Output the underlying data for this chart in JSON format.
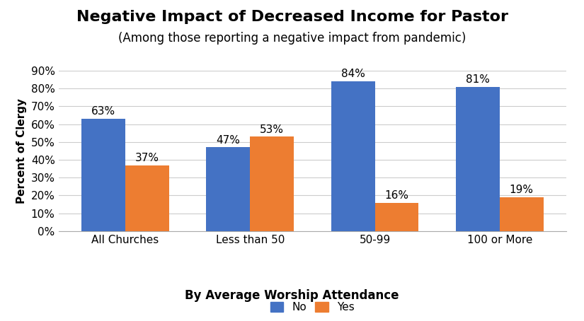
{
  "title": "Negative Impact of Decreased Income for Pastor",
  "subtitle": "(Among those reporting a negative impact from pandemic)",
  "xlabel": "By Average Worship Attendance",
  "ylabel": "Percent of Clergy",
  "categories": [
    "All Churches",
    "Less than 50",
    "50-99",
    "100 or More"
  ],
  "no_values": [
    63,
    47,
    84,
    81
  ],
  "yes_values": [
    37,
    53,
    16,
    19
  ],
  "no_color": "#4472C4",
  "yes_color": "#ED7D31",
  "ylim": [
    0,
    90
  ],
  "yticks": [
    0,
    10,
    20,
    30,
    40,
    50,
    60,
    70,
    80,
    90
  ],
  "ytick_labels": [
    "0%",
    "10%",
    "20%",
    "30%",
    "40%",
    "50%",
    "60%",
    "70%",
    "80%",
    "90%"
  ],
  "bar_width": 0.35,
  "title_fontsize": 16,
  "subtitle_fontsize": 12,
  "label_fontsize": 11,
  "tick_fontsize": 11,
  "bar_label_fontsize": 11,
  "legend_labels": [
    "No",
    "Yes"
  ],
  "background_color": "#FFFFFF"
}
